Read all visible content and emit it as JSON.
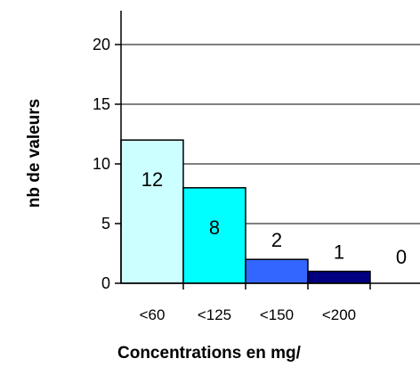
{
  "chart_data": {
    "type": "bar",
    "title": "",
    "xlabel": "Concentrations en mg/",
    "ylabel": "nb de valeurs",
    "categories": [
      "<60",
      "<125",
      "<150",
      "<200",
      ""
    ],
    "values": [
      12,
      8,
      2,
      1,
      0
    ],
    "data_labels": [
      "12",
      "8",
      "2",
      "1",
      "0"
    ],
    "bar_colors": [
      "#ccffff",
      "#00ffff",
      "#3366ff",
      "#000080",
      "#ffffff"
    ],
    "ylim": [
      0,
      20
    ],
    "yticks": [
      0,
      5,
      10,
      15,
      20
    ],
    "ytick_labels": [
      "0",
      "5",
      "10",
      "15",
      "20"
    ],
    "grid": true,
    "legend": "none"
  }
}
